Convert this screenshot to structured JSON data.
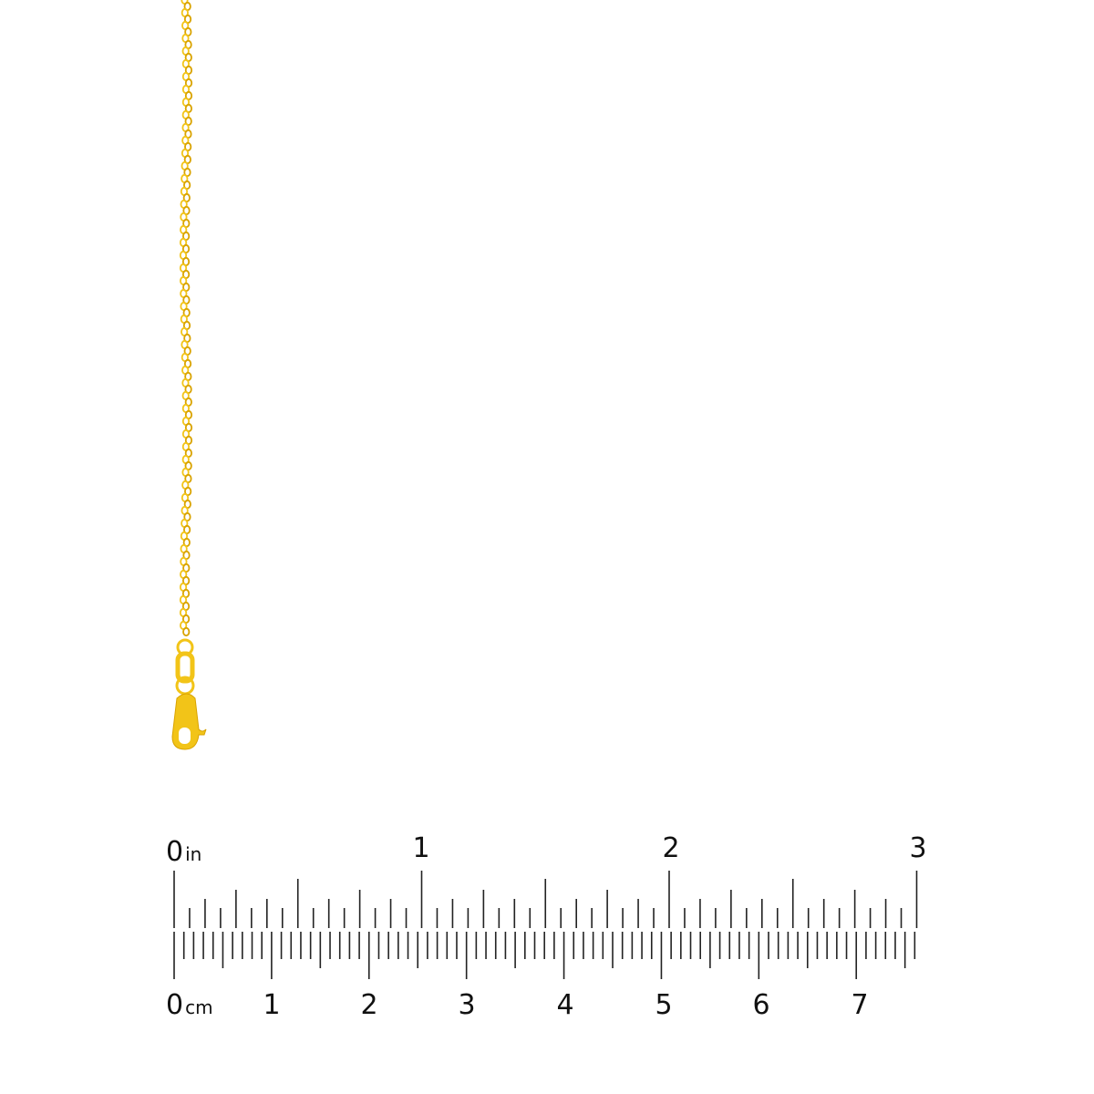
{
  "product": {
    "chain_color": "#f2c418",
    "chain_shade": "#d9a300"
  },
  "ruler": {
    "inch_unit": "in",
    "cm_unit": "cm",
    "inch_labels": [
      "0",
      "1",
      "2",
      "3"
    ],
    "cm_labels": [
      "0",
      "1",
      "2",
      "3",
      "4",
      "5",
      "6",
      "7"
    ],
    "tick_color": "#222222"
  }
}
